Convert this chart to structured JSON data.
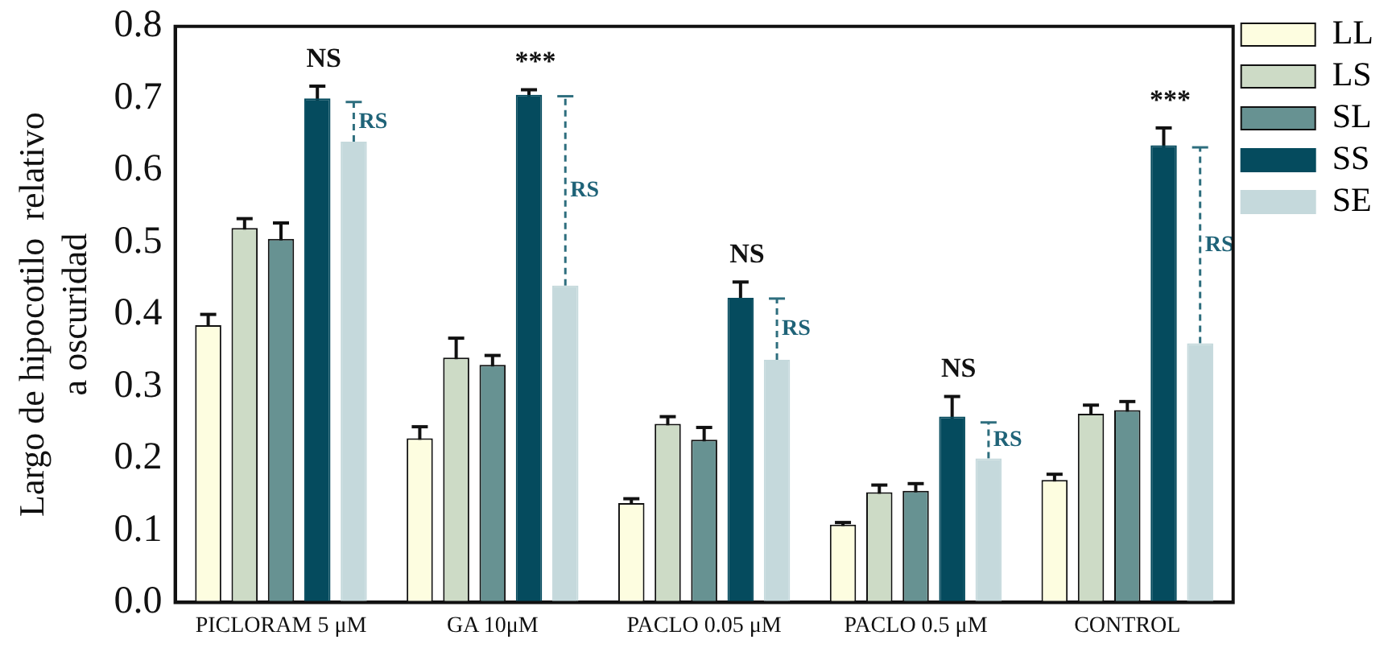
{
  "chart_data": {
    "type": "bar",
    "ylabel": "Largo de hipocotilo  relativo\na oscuridad",
    "categories": [
      "PICLORAM 5 μM",
      "GA 10μM",
      "PACLO 0.05 μM",
      "PACLO 0.5 μM",
      "CONTROL"
    ],
    "series": [
      {
        "name": "LL",
        "color": "#fdfde0",
        "values": [
          0.385,
          0.228,
          0.138,
          0.108,
          0.17
        ],
        "errors": [
          0.015,
          0.016,
          0.006,
          0.003,
          0.008
        ]
      },
      {
        "name": "LS",
        "color": "#cddbc6",
        "values": [
          0.52,
          0.34,
          0.248,
          0.153,
          0.262
        ],
        "errors": [
          0.013,
          0.027,
          0.01,
          0.01,
          0.012
        ]
      },
      {
        "name": "SL",
        "color": "#679292",
        "values": [
          0.505,
          0.33,
          0.226,
          0.155,
          0.267
        ],
        "errors": [
          0.022,
          0.013,
          0.017,
          0.01,
          0.012
        ]
      },
      {
        "name": "SS",
        "color": "#054b5e",
        "values": [
          0.7,
          0.705,
          0.423,
          0.258,
          0.635
        ],
        "errors": [
          0.017,
          0.007,
          0.022,
          0.028,
          0.024
        ]
      },
      {
        "name": "SE",
        "color": "#c5d9dc",
        "values": [
          0.64,
          0.44,
          0.337,
          0.2,
          0.36
        ],
        "line_style": "dashed",
        "errors": [
          [
            0.64,
            0.695
          ],
          [
            0.44,
            0.703
          ],
          [
            0.337,
            0.422
          ],
          [
            0.2,
            0.25
          ],
          [
            0.36,
            0.632
          ]
        ]
      }
    ],
    "ylim": [
      0,
      0.8
    ],
    "yticks": [
      {
        "value": 0,
        "label": "0.0"
      },
      0.1,
      0.2,
      0.3,
      0.4,
      0.5,
      0.6,
      0.7,
      0.8
    ],
    "grid": false,
    "legend": "right",
    "annotations": [
      "NS",
      "***",
      "NS",
      "NS",
      "***",
      "RS",
      "RS",
      "RS",
      "RS",
      "RS"
    ]
  }
}
